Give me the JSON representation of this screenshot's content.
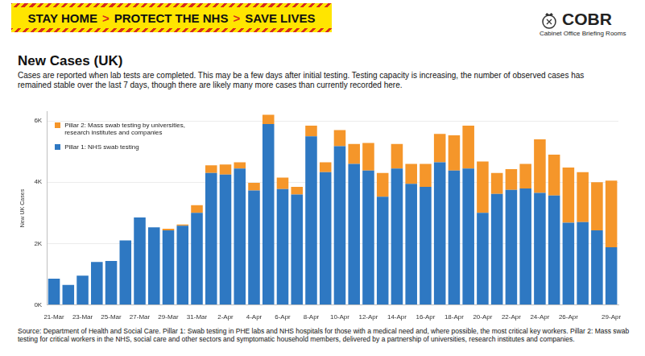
{
  "banner": [
    "STAY HOME",
    ">",
    "PROTECT THE NHS",
    ">",
    "SAVE LIVES"
  ],
  "logo": {
    "title": "COBR",
    "subtitle": "Cabinet Office Briefing Rooms"
  },
  "source": "Source: Department of Health and Social Care. Pillar 1: Swab testing in PHE labs and NHS hospitals for those with a medical need and, where possible, the most critical key workers. Pillar 2: Mass swab testing for critical workers in the NHS, social care and other sectors and symptomatic household members, delivered by a partnership of universities, research institutes and companies.",
  "chart_data": {
    "type": "bar",
    "title": "New Cases (UK)",
    "subtitle": "Cases are reported when lab tests are completed. This may be a few days after initial testing. Testing capacity is increasing, the number of observed cases has remained stable over the last 7 days, though there are likely many more cases than currently recorded here.",
    "y_label": "New UK Cases",
    "stacked": true,
    "grid": true,
    "legend": "top-left",
    "categories": [
      "21-Mar",
      null,
      "23-Mar",
      null,
      "25-Mar",
      null,
      "27-Mar",
      null,
      "29-Mar",
      null,
      "31-Mar",
      null,
      "2-Apr",
      null,
      "4-Apr",
      null,
      "6-Apr",
      null,
      "8-Apr",
      null,
      "10-Apr",
      null,
      "12-Apr",
      null,
      "14-Apr",
      null,
      "16-Apr",
      null,
      "18-Apr",
      null,
      "20-Apr",
      null,
      "22-Apr",
      null,
      "24-Apr",
      null,
      "26-Apr",
      null,
      null,
      "29-Apr"
    ],
    "series": [
      {
        "name": "Pillar 1: NHS swab testing",
        "color": "#2e78c2",
        "values": [
          850,
          650,
          950,
          1400,
          1430,
          2100,
          2850,
          2530,
          2430,
          2580,
          3000,
          4300,
          4250,
          4450,
          3730,
          5900,
          3780,
          3600,
          5500,
          4330,
          5180,
          4600,
          4380,
          3530,
          4450,
          3950,
          3850,
          4650,
          4380,
          4450,
          3000,
          3620,
          3750,
          3800,
          3650,
          3570,
          2680,
          2700,
          2430,
          1880
        ]
      },
      {
        "name": "Pillar 2: Mass swab testing by universities, research institutes and companies",
        "color": "#f5962a",
        "values": [
          0,
          0,
          0,
          0,
          0,
          0,
          0,
          0,
          50,
          40,
          250,
          250,
          330,
          200,
          250,
          300,
          370,
          250,
          350,
          320,
          520,
          650,
          900,
          770,
          800,
          650,
          750,
          930,
          1150,
          1400,
          1680,
          680,
          680,
          800,
          1750,
          1330,
          1800,
          1630,
          1570,
          2170
        ]
      }
    ],
    "ylim": [
      0,
      6300
    ],
    "yticks": [
      {
        "value": 0,
        "label": "0K"
      },
      {
        "value": 2000,
        "label": "2K"
      },
      {
        "value": 4000,
        "label": "4K"
      },
      {
        "value": 6000,
        "label": "6K"
      }
    ]
  }
}
